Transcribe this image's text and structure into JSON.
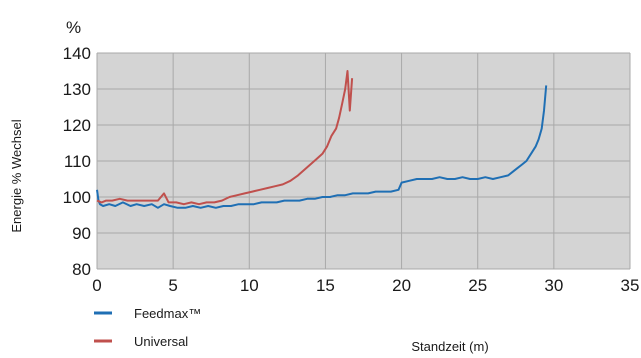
{
  "chart_data": {
    "type": "line",
    "ylabel": "Energie % Wechsel",
    "yunit": "%",
    "xlabel": "Standzeit (m)",
    "xlim": [
      0,
      35
    ],
    "ylim": [
      80,
      140
    ],
    "xticks": [
      0,
      5,
      10,
      15,
      20,
      25,
      30,
      35
    ],
    "yticks": [
      80,
      90,
      100,
      110,
      120,
      130,
      140
    ],
    "grid": true,
    "plot_background": "#d4d4d4",
    "legend_position": "bottom-left",
    "series": [
      {
        "name": "Feedmax™",
        "color": "#1f6fb4",
        "x": [
          0,
          0.1,
          0.2,
          0.4,
          0.8,
          1.2,
          1.7,
          2.2,
          2.6,
          3.1,
          3.6,
          4.0,
          4.4,
          4.8,
          5.3,
          5.8,
          6.3,
          6.8,
          7.3,
          7.8,
          8.3,
          8.8,
          9.3,
          9.8,
          10.3,
          10.8,
          11.3,
          11.8,
          12.3,
          12.8,
          13.3,
          13.8,
          14.3,
          14.8,
          15.3,
          15.8,
          16.3,
          16.8,
          17.3,
          17.8,
          18.3,
          18.8,
          19.3,
          19.8,
          20.0,
          20.5,
          21.0,
          21.5,
          22.0,
          22.5,
          23.0,
          23.5,
          24.0,
          24.5,
          25.0,
          25.5,
          26.0,
          26.5,
          27.0,
          27.3,
          27.6,
          27.9,
          28.2,
          28.5,
          28.8,
          29.0,
          29.2,
          29.35,
          29.5
        ],
        "values": [
          102,
          99,
          98,
          97.5,
          98,
          97.5,
          98.5,
          97.5,
          98,
          97.5,
          98,
          97,
          98,
          97.5,
          97,
          97,
          97.5,
          97,
          97.5,
          97,
          97.5,
          97.5,
          98,
          98,
          98,
          98.5,
          98.5,
          98.5,
          99,
          99,
          99,
          99.5,
          99.5,
          100,
          100,
          100.5,
          100.5,
          101,
          101,
          101,
          101.5,
          101.5,
          101.5,
          102,
          104,
          104.5,
          105,
          105,
          105,
          105.5,
          105,
          105,
          105.5,
          105,
          105,
          105.5,
          105,
          105.5,
          106,
          107,
          108,
          109,
          110,
          112,
          114,
          116,
          119,
          124,
          131
        ]
      },
      {
        "name": "Universal",
        "color": "#c0504d",
        "x": [
          0,
          0.3,
          0.6,
          1.0,
          1.5,
          2.0,
          2.5,
          3.0,
          3.5,
          4.0,
          4.4,
          4.7,
          5.2,
          5.7,
          6.2,
          6.7,
          7.2,
          7.7,
          8.2,
          8.7,
          9.2,
          9.7,
          10.2,
          10.7,
          11.2,
          11.7,
          12.2,
          12.7,
          13.2,
          13.6,
          14.0,
          14.4,
          14.8,
          15.1,
          15.4,
          15.7,
          15.9,
          16.1,
          16.3,
          16.45,
          16.6,
          16.75
        ],
        "values": [
          99,
          98.5,
          99,
          99,
          99.5,
          99,
          99,
          99,
          99,
          99,
          101,
          98.5,
          98.5,
          98,
          98.5,
          98,
          98.5,
          98.5,
          99,
          100,
          100.5,
          101,
          101.5,
          102,
          102.5,
          103,
          103.5,
          104.5,
          106,
          107.5,
          109,
          110.5,
          112,
          114,
          117,
          119,
          122,
          126,
          130,
          135,
          124,
          133
        ]
      }
    ]
  }
}
